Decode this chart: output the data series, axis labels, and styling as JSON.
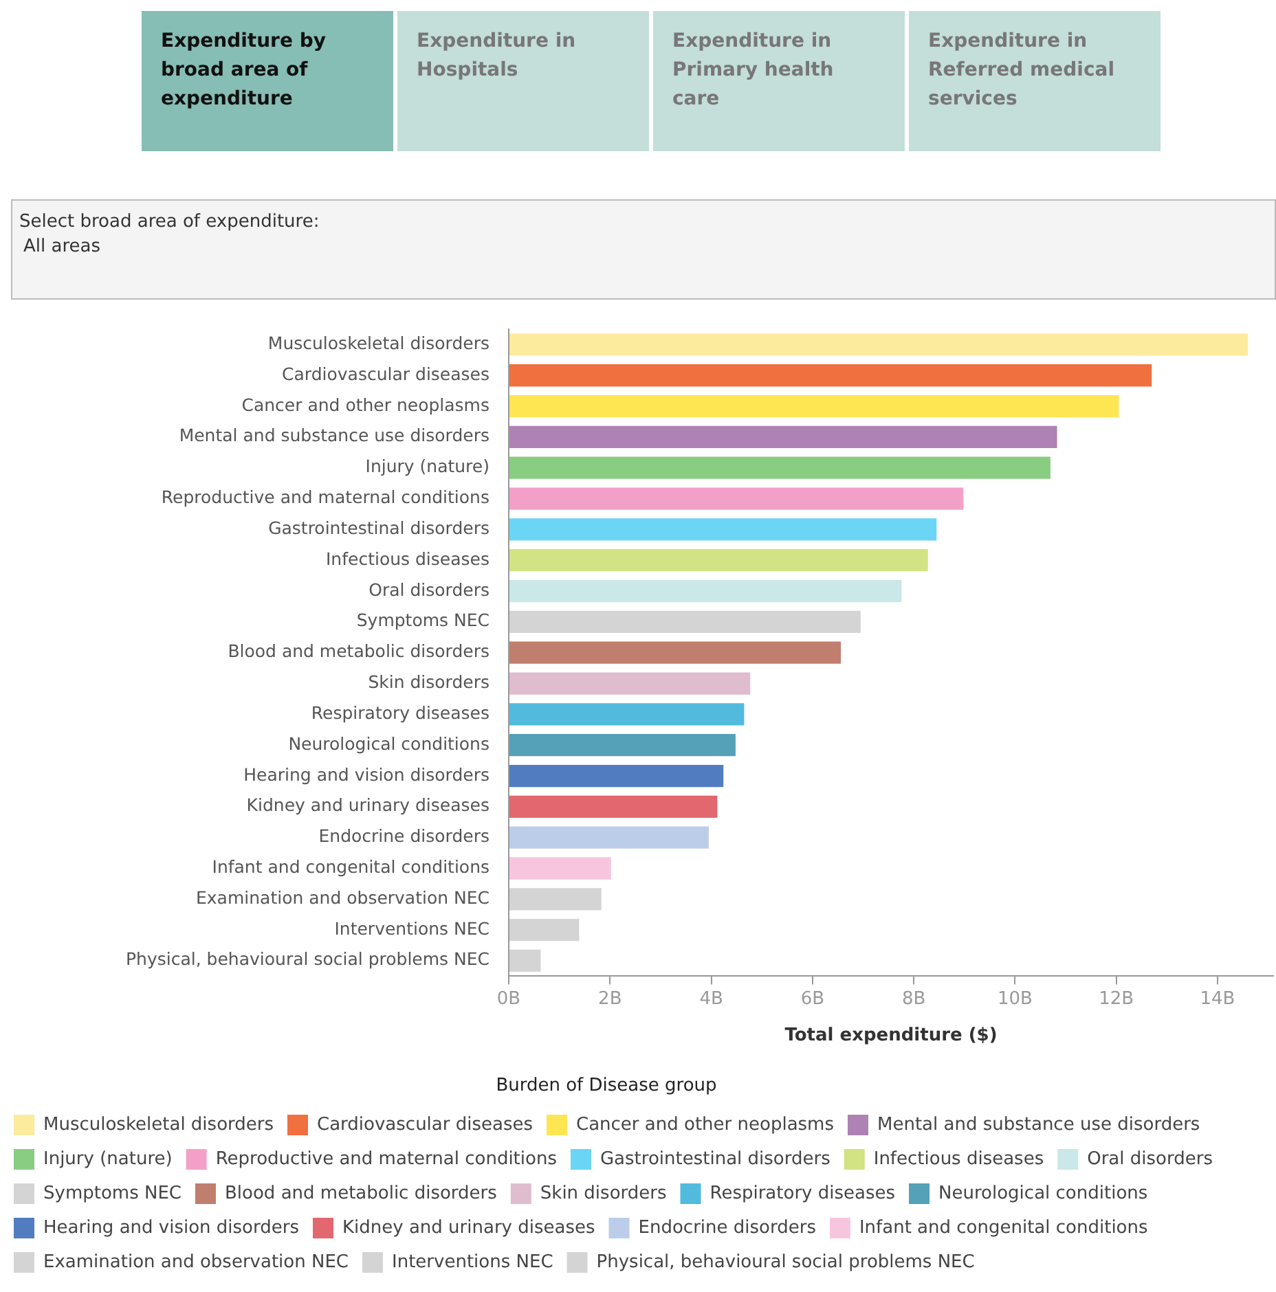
{
  "chart_data": {
    "type": "bar",
    "orientation": "horizontal",
    "stacked": true,
    "annotations": [
      "Expenditure by broad area of expenditure",
      "Expenditure in Hospitals",
      "Expenditure in Primary health care",
      "Expenditure in Referred medical services",
      "Select broad area of expenditure:",
      "All areas"
    ],
    "xlabel": "Total expenditure ($)",
    "legend_title": "Burden of Disease group",
    "categories": [
      "Musculoskeletal disorders",
      "Cardiovascular diseases",
      "Cancer and other neoplasms",
      "Mental and substance use disorders",
      "Injury (nature)",
      "Reproductive and maternal conditions",
      "Gastrointestinal disorders",
      "Infectious diseases",
      "Oral disorders",
      "Symptoms NEC",
      "Blood and metabolic disorders",
      "Skin disorders",
      "Respiratory diseases",
      "Neurological conditions",
      "Hearing and vision disorders",
      "Kidney and urinary diseases",
      "Endocrine disorders",
      "Infant and congenital conditions",
      "Examination and observation NEC",
      "Interventions NEC",
      "Physical, behavioural social problems NEC"
    ],
    "series": [
      {
        "name": "Musculoskeletal disorders",
        "color": "#fdeb9d",
        "values": [
          14.6,
          null,
          null,
          null,
          null,
          null,
          null,
          null,
          null,
          null,
          null,
          null,
          null,
          null,
          null,
          null,
          null,
          null,
          null,
          null,
          null
        ]
      },
      {
        "name": "Cardiovascular diseases",
        "color": "#f07040",
        "values": [
          null,
          12.7,
          null,
          null,
          null,
          null,
          null,
          null,
          null,
          null,
          null,
          null,
          null,
          null,
          null,
          null,
          null,
          null,
          null,
          null,
          null
        ]
      },
      {
        "name": "Cancer and other neoplasms",
        "color": "#fee552",
        "values": [
          null,
          null,
          12.05,
          null,
          null,
          null,
          null,
          null,
          null,
          null,
          null,
          null,
          null,
          null,
          null,
          null,
          null,
          null,
          null,
          null,
          null
        ]
      },
      {
        "name": "Mental and substance use disorders",
        "color": "#ae82b4",
        "values": [
          null,
          null,
          null,
          10.83,
          null,
          null,
          null,
          null,
          null,
          null,
          null,
          null,
          null,
          null,
          null,
          null,
          null,
          null,
          null,
          null,
          null
        ]
      },
      {
        "name": "Injury (nature)",
        "color": "#89cd82",
        "values": [
          null,
          null,
          null,
          null,
          10.7,
          null,
          null,
          null,
          null,
          null,
          null,
          null,
          null,
          null,
          null,
          null,
          null,
          null,
          null,
          null,
          null
        ]
      },
      {
        "name": "Reproductive and maternal conditions",
        "color": "#f3a0c8",
        "values": [
          null,
          null,
          null,
          null,
          null,
          8.98,
          null,
          null,
          null,
          null,
          null,
          null,
          null,
          null,
          null,
          null,
          null,
          null,
          null,
          null,
          null
        ]
      },
      {
        "name": "Gastrointestinal disorders",
        "color": "#6ad5f5",
        "values": [
          null,
          null,
          null,
          null,
          null,
          null,
          8.45,
          null,
          null,
          null,
          null,
          null,
          null,
          null,
          null,
          null,
          null,
          null,
          null,
          null,
          null
        ]
      },
      {
        "name": "Infectious diseases",
        "color": "#d1e383",
        "values": [
          null,
          null,
          null,
          null,
          null,
          null,
          null,
          8.28,
          null,
          null,
          null,
          null,
          null,
          null,
          null,
          null,
          null,
          null,
          null,
          null,
          null
        ]
      },
      {
        "name": "Oral disorders",
        "color": "#c9e8e7",
        "values": [
          null,
          null,
          null,
          null,
          null,
          null,
          null,
          null,
          7.76,
          null,
          null,
          null,
          null,
          null,
          null,
          null,
          null,
          null,
          null,
          null,
          null
        ]
      },
      {
        "name": "Symptoms NEC",
        "color": "#d4d4d4",
        "values": [
          null,
          null,
          null,
          null,
          null,
          null,
          null,
          null,
          null,
          6.95,
          null,
          null,
          null,
          null,
          null,
          null,
          null,
          null,
          null,
          null,
          null
        ]
      },
      {
        "name": "Blood and metabolic disorders",
        "color": "#c07f6e",
        "values": [
          null,
          null,
          null,
          null,
          null,
          null,
          null,
          null,
          null,
          null,
          6.56,
          null,
          null,
          null,
          null,
          null,
          null,
          null,
          null,
          null,
          null
        ]
      },
      {
        "name": "Skin disorders",
        "color": "#e0bccf",
        "values": [
          null,
          null,
          null,
          null,
          null,
          null,
          null,
          null,
          null,
          null,
          null,
          4.77,
          null,
          null,
          null,
          null,
          null,
          null,
          null,
          null,
          null
        ]
      },
      {
        "name": "Respiratory diseases",
        "color": "#52bbdd",
        "values": [
          null,
          null,
          null,
          null,
          null,
          null,
          null,
          null,
          null,
          null,
          null,
          null,
          4.65,
          null,
          null,
          null,
          null,
          null,
          null,
          null,
          null
        ]
      },
      {
        "name": "Neurological conditions",
        "color": "#54a1b8",
        "values": [
          null,
          null,
          null,
          null,
          null,
          null,
          null,
          null,
          null,
          null,
          null,
          null,
          null,
          4.48,
          null,
          null,
          null,
          null,
          null,
          null,
          null
        ]
      },
      {
        "name": "Hearing and vision disorders",
        "color": "#517cc0",
        "values": [
          null,
          null,
          null,
          null,
          null,
          null,
          null,
          null,
          null,
          null,
          null,
          null,
          null,
          null,
          4.24,
          null,
          null,
          null,
          null,
          null,
          null
        ]
      },
      {
        "name": "Kidney and urinary diseases",
        "color": "#e2676e",
        "values": [
          null,
          null,
          null,
          null,
          null,
          null,
          null,
          null,
          null,
          null,
          null,
          null,
          null,
          null,
          null,
          4.12,
          null,
          null,
          null,
          null,
          null
        ]
      },
      {
        "name": "Endocrine disorders",
        "color": "#bccde9",
        "values": [
          null,
          null,
          null,
          null,
          null,
          null,
          null,
          null,
          null,
          null,
          null,
          null,
          null,
          null,
          null,
          null,
          3.95,
          null,
          null,
          null,
          null
        ]
      },
      {
        "name": "Infant and congenital conditions",
        "color": "#f7c5de",
        "values": [
          null,
          null,
          null,
          null,
          null,
          null,
          null,
          null,
          null,
          null,
          null,
          null,
          null,
          null,
          null,
          null,
          null,
          2.02,
          null,
          null,
          null
        ]
      },
      {
        "name": "Examination and observation NEC",
        "color": "#d4d4d4",
        "values": [
          null,
          null,
          null,
          null,
          null,
          null,
          null,
          null,
          null,
          null,
          null,
          null,
          null,
          null,
          null,
          null,
          null,
          null,
          1.83,
          null,
          null
        ]
      },
      {
        "name": "Interventions NEC",
        "color": "#d4d4d4",
        "values": [
          null,
          null,
          null,
          null,
          null,
          null,
          null,
          null,
          null,
          null,
          null,
          null,
          null,
          null,
          null,
          null,
          null,
          null,
          null,
          1.39,
          null
        ]
      },
      {
        "name": "Physical, behavioural social problems NEC",
        "color": "#d4d4d4",
        "values": [
          null,
          null,
          null,
          null,
          null,
          null,
          null,
          null,
          null,
          null,
          null,
          null,
          null,
          null,
          null,
          null,
          null,
          null,
          null,
          null,
          0.63
        ]
      }
    ],
    "xlim": [
      0,
      15.1
    ],
    "xticks": [
      {
        "value": 0,
        "label": "0B"
      },
      {
        "value": 2,
        "label": "2B"
      },
      {
        "value": 4,
        "label": "4B"
      },
      {
        "value": 6,
        "label": "6B"
      },
      {
        "value": 8,
        "label": "8B"
      },
      {
        "value": 10,
        "label": "10B"
      },
      {
        "value": 12,
        "label": "12B"
      },
      {
        "value": 14,
        "label": "14B"
      }
    ],
    "grid": false,
    "legend": "bottom"
  }
}
